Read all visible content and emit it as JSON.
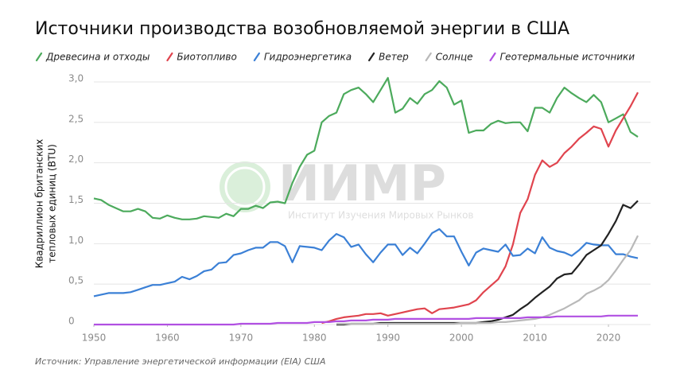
{
  "chart_data": {
    "type": "line",
    "title": "Источники производства возобновляемой энергии в США",
    "ylabel": [
      "Квадриллион британских",
      "тепловых единиц (BTU)"
    ],
    "source": "Источник: Управление энергетической информации (EIA) США",
    "watermark": {
      "title": "ИИМР",
      "subtitle": "Институт Изучения Мировых Рынков"
    },
    "x": [
      1950,
      1951,
      1952,
      1953,
      1954,
      1955,
      1956,
      1957,
      1958,
      1959,
      1960,
      1961,
      1962,
      1963,
      1964,
      1965,
      1966,
      1967,
      1968,
      1969,
      1970,
      1971,
      1972,
      1973,
      1974,
      1975,
      1976,
      1977,
      1978,
      1979,
      1980,
      1981,
      1982,
      1983,
      1984,
      1985,
      1986,
      1987,
      1988,
      1989,
      1990,
      1991,
      1992,
      1993,
      1994,
      1995,
      1996,
      1997,
      1998,
      1999,
      2000,
      2001,
      2002,
      2003,
      2004,
      2005,
      2006,
      2007,
      2008,
      2009,
      2010,
      2011,
      2012,
      2013,
      2014,
      2015,
      2016,
      2017,
      2018,
      2019,
      2020,
      2021,
      2022,
      2023,
      2024
    ],
    "xlim": [
      1950,
      2024
    ],
    "xticks": [
      1950,
      1960,
      1970,
      1980,
      1990,
      2000,
      2010,
      2020
    ],
    "ylim": [
      0,
      3
    ],
    "yticks": [
      0,
      {
        "value": 0.5,
        "label": "0,5"
      },
      {
        "value": 1,
        "label": "1,0"
      },
      {
        "value": 1.5,
        "label": "1,5"
      },
      {
        "value": 2,
        "label": "2,0"
      },
      {
        "value": 2.5,
        "label": "2,5"
      },
      {
        "value": 3,
        "label": "3,0"
      }
    ],
    "grid": true,
    "series": [
      {
        "name": "Древесина и отходы",
        "color": "#4caa5c",
        "values": [
          1.56,
          1.54,
          1.48,
          1.44,
          1.4,
          1.4,
          1.43,
          1.4,
          1.32,
          1.31,
          1.35,
          1.32,
          1.3,
          1.3,
          1.31,
          1.34,
          1.33,
          1.32,
          1.37,
          1.34,
          1.43,
          1.43,
          1.47,
          1.44,
          1.51,
          1.52,
          1.5,
          1.75,
          1.95,
          2.1,
          2.15,
          2.5,
          2.58,
          2.62,
          2.85,
          2.9,
          2.93,
          2.85,
          2.75,
          2.9,
          3.05,
          2.62,
          2.67,
          2.8,
          2.73,
          2.85,
          2.9,
          3.01,
          2.93,
          2.72,
          2.77,
          2.37,
          2.4,
          2.4,
          2.48,
          2.52,
          2.49,
          2.5,
          2.5,
          2.39,
          2.68,
          2.68,
          2.62,
          2.8,
          2.93,
          2.86,
          2.8,
          2.75,
          2.84,
          2.75,
          2.5,
          2.55,
          2.6,
          2.38,
          2.32
        ]
      },
      {
        "name": "Биотопливо",
        "color": "#e0444e",
        "values": [
          null,
          null,
          null,
          null,
          null,
          null,
          null,
          null,
          null,
          null,
          null,
          null,
          null,
          null,
          null,
          null,
          null,
          null,
          null,
          null,
          null,
          null,
          null,
          null,
          null,
          null,
          null,
          null,
          null,
          null,
          null,
          0.02,
          0.04,
          0.07,
          0.09,
          0.1,
          0.11,
          0.13,
          0.13,
          0.14,
          0.11,
          0.13,
          0.15,
          0.17,
          0.19,
          0.2,
          0.14,
          0.19,
          0.2,
          0.21,
          0.23,
          0.25,
          0.3,
          0.4,
          0.48,
          0.56,
          0.72,
          0.99,
          1.38,
          1.55,
          1.85,
          2.03,
          1.95,
          2.0,
          2.12,
          2.2,
          2.3,
          2.37,
          2.45,
          2.42,
          2.2,
          2.4,
          2.55,
          2.7,
          2.87
        ]
      },
      {
        "name": "Гидроэнергетика",
        "color": "#3b80d6",
        "values": [
          0.35,
          0.37,
          0.39,
          0.39,
          0.39,
          0.4,
          0.43,
          0.46,
          0.49,
          0.49,
          0.51,
          0.53,
          0.59,
          0.56,
          0.6,
          0.66,
          0.68,
          0.76,
          0.77,
          0.86,
          0.88,
          0.92,
          0.95,
          0.95,
          1.02,
          1.02,
          0.97,
          0.77,
          0.97,
          0.96,
          0.95,
          0.92,
          1.04,
          1.12,
          1.08,
          0.96,
          0.99,
          0.87,
          0.77,
          0.89,
          0.99,
          0.99,
          0.86,
          0.95,
          0.88,
          1.0,
          1.13,
          1.18,
          1.09,
          1.09,
          0.9,
          0.73,
          0.89,
          0.94,
          0.92,
          0.9,
          0.99,
          0.85,
          0.86,
          0.94,
          0.88,
          1.08,
          0.95,
          0.91,
          0.89,
          0.85,
          0.92,
          1.01,
          0.99,
          0.98,
          0.98,
          0.87,
          0.87,
          0.84,
          0.82
        ]
      },
      {
        "name": "Ветер",
        "color": "#222222",
        "values": [
          null,
          null,
          null,
          null,
          null,
          null,
          null,
          null,
          null,
          null,
          null,
          null,
          null,
          null,
          null,
          null,
          null,
          null,
          null,
          null,
          null,
          null,
          null,
          null,
          null,
          null,
          null,
          null,
          null,
          null,
          null,
          null,
          null,
          0.0,
          0.0,
          0.01,
          0.01,
          0.01,
          0.01,
          0.02,
          0.02,
          0.02,
          0.02,
          0.02,
          0.02,
          0.02,
          0.02,
          0.02,
          0.02,
          0.02,
          0.02,
          0.02,
          0.02,
          0.03,
          0.04,
          0.06,
          0.09,
          0.12,
          0.19,
          0.25,
          0.33,
          0.4,
          0.47,
          0.57,
          0.62,
          0.63,
          0.74,
          0.86,
          0.92,
          0.98,
          1.12,
          1.28,
          1.48,
          1.44,
          1.53
        ]
      },
      {
        "name": "Солнце",
        "color": "#b9b9b9",
        "values": [
          null,
          null,
          null,
          null,
          null,
          null,
          null,
          null,
          null,
          null,
          null,
          null,
          null,
          null,
          null,
          null,
          null,
          null,
          null,
          null,
          null,
          null,
          null,
          null,
          null,
          null,
          null,
          null,
          null,
          null,
          null,
          null,
          null,
          0.01,
          0.01,
          0.01,
          0.01,
          0.01,
          0.01,
          0.01,
          0.01,
          0.01,
          0.01,
          0.01,
          0.01,
          0.01,
          0.01,
          0.01,
          0.01,
          0.01,
          0.02,
          0.02,
          0.02,
          0.02,
          0.02,
          0.03,
          0.03,
          0.04,
          0.05,
          0.06,
          0.07,
          0.09,
          0.12,
          0.16,
          0.2,
          0.25,
          0.3,
          0.38,
          0.42,
          0.47,
          0.55,
          0.67,
          0.8,
          0.92,
          1.1
        ]
      },
      {
        "name": "Геотермальные источники",
        "color": "#b150e2",
        "values": [
          0.0,
          0.0,
          0.0,
          0.0,
          0.0,
          0.0,
          0.0,
          0.0,
          0.0,
          0.0,
          0.0,
          0.0,
          0.0,
          0.0,
          0.0,
          0.0,
          0.0,
          0.0,
          0.0,
          0.0,
          0.01,
          0.01,
          0.01,
          0.01,
          0.01,
          0.02,
          0.02,
          0.02,
          0.02,
          0.02,
          0.03,
          0.03,
          0.03,
          0.04,
          0.04,
          0.05,
          0.05,
          0.05,
          0.06,
          0.06,
          0.06,
          0.07,
          0.07,
          0.07,
          0.07,
          0.07,
          0.07,
          0.07,
          0.07,
          0.07,
          0.07,
          0.07,
          0.08,
          0.08,
          0.08,
          0.08,
          0.08,
          0.08,
          0.08,
          0.09,
          0.09,
          0.09,
          0.09,
          0.1,
          0.1,
          0.1,
          0.1,
          0.1,
          0.1,
          0.1,
          0.11,
          0.11,
          0.11,
          0.11,
          0.11
        ]
      }
    ]
  }
}
